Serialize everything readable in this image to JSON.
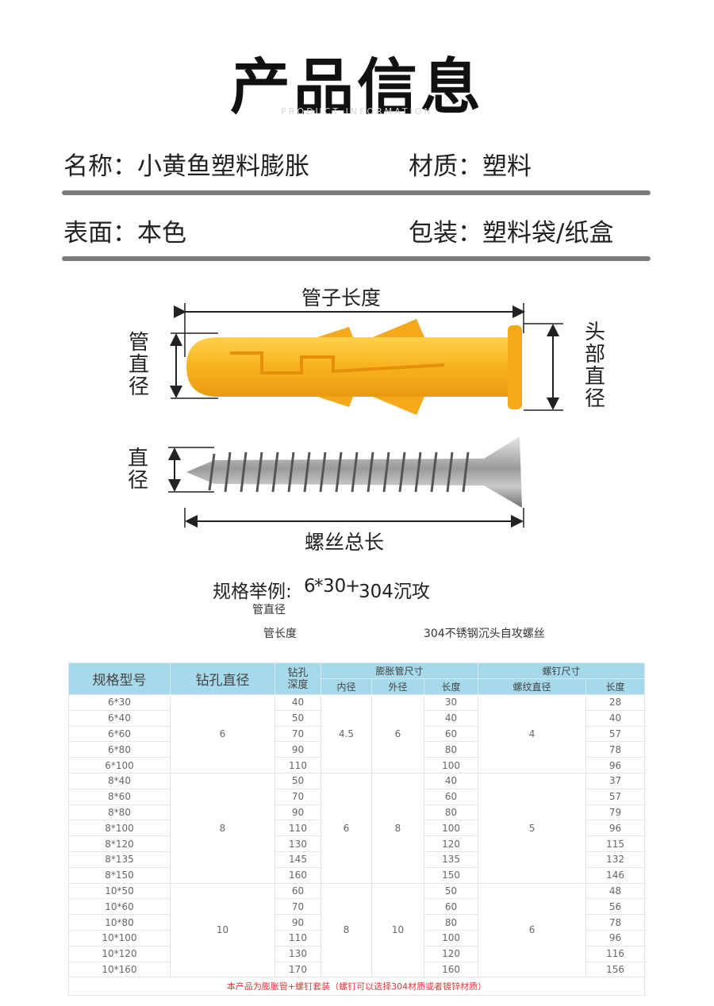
{
  "header": {
    "title": "产品信息",
    "subtitle": "PRODUCT INFORMATION"
  },
  "info": [
    [
      "名称：小黄鱼塑料膨胀",
      "材质：塑料"
    ],
    [
      "表面：本色",
      "包装：塑料袋/纸盒"
    ]
  ],
  "diagram": {
    "tube_length": "管子长度",
    "tube_diameter": "管直径",
    "head_diameter": "头部直径",
    "screw_diameter": "直径",
    "screw_length": "螺丝总长"
  },
  "spec_example": {
    "label": "规格举例:",
    "parts": [
      "6",
      "*",
      "30",
      "+",
      "304沉攻"
    ],
    "notes": [
      "管直径",
      "管长度",
      "304不锈钢沉头自攻螺丝"
    ]
  },
  "table": {
    "headers": {
      "model": "规格型号",
      "drill_diameter": "钻孔直径",
      "drill_depth": "钻孔深度",
      "tube_size": "膨胀管尺寸",
      "inner": "内径",
      "outer": "外径",
      "tube_length": "长度",
      "screw_size": "螺钉尺寸",
      "thread_diameter": "螺纹直径",
      "screw_length": "长度"
    },
    "groups": [
      {
        "drill_diameter": "6",
        "inner": "4.5",
        "outer": "6",
        "thread_diameter": "4",
        "rows": [
          [
            "6*30",
            "40",
            "30",
            "28"
          ],
          [
            "6*40",
            "50",
            "40",
            "40"
          ],
          [
            "6*60",
            "70",
            "60",
            "57"
          ],
          [
            "6*80",
            "90",
            "80",
            "78"
          ],
          [
            "6*100",
            "110",
            "100",
            "96"
          ]
        ]
      },
      {
        "drill_diameter": "8",
        "inner": "6",
        "outer": "8",
        "thread_diameter": "5",
        "rows": [
          [
            "8*40",
            "50",
            "40",
            "37"
          ],
          [
            "8*60",
            "70",
            "60",
            "57"
          ],
          [
            "8*80",
            "90",
            "80",
            "79"
          ],
          [
            "8*100",
            "110",
            "100",
            "96"
          ],
          [
            "8*120",
            "130",
            "120",
            "115"
          ],
          [
            "8*135",
            "145",
            "135",
            "132"
          ],
          [
            "8*150",
            "160",
            "150",
            "146"
          ]
        ]
      },
      {
        "drill_diameter": "10",
        "inner": "8",
        "outer": "10",
        "thread_diameter": "6",
        "rows": [
          [
            "10*50",
            "60",
            "50",
            "48"
          ],
          [
            "10*60",
            "70",
            "60",
            "56"
          ],
          [
            "10*80",
            "90",
            "80",
            "78"
          ],
          [
            "10*100",
            "110",
            "100",
            "96"
          ],
          [
            "10*120",
            "130",
            "120",
            "116"
          ],
          [
            "10*160",
            "170",
            "160",
            "156"
          ]
        ]
      }
    ],
    "note": "本产品为膨胀管+螺钉套装（螺钉可以选择304材质或者镀锌材质）"
  }
}
